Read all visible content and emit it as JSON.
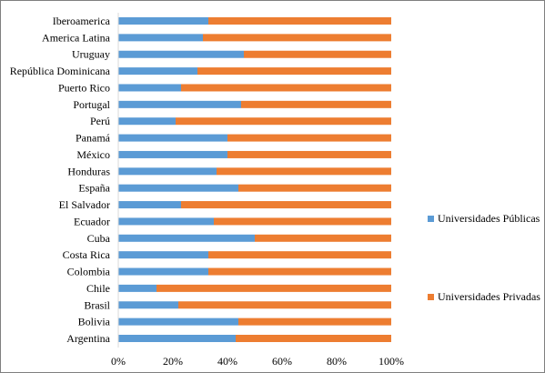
{
  "chart_data": {
    "type": "bar",
    "orientation": "horizontal",
    "stacked": "percent",
    "categories": [
      "Iberoamerica",
      "America Latina",
      "Uruguay",
      "República Dominicana",
      "Puerto Rico",
      "Portugal",
      "Perú",
      "Panamá",
      "México",
      "Honduras",
      "España",
      "El Salvador",
      "Ecuador",
      "Cuba",
      "Costa Rica",
      "Colombia",
      "Chile",
      "Brasil",
      "Bolivia",
      "Argentina"
    ],
    "series": [
      {
        "name": "Universidades Públicas",
        "color": "#5b9bd5",
        "values": [
          33,
          31,
          46,
          29,
          23,
          45,
          21,
          40,
          40,
          36,
          44,
          23,
          35,
          50,
          33,
          33,
          14,
          22,
          44,
          43
        ]
      },
      {
        "name": "Universidades Privadas",
        "color": "#ed7d31",
        "values": [
          67,
          69,
          54,
          71,
          77,
          55,
          79,
          60,
          60,
          64,
          56,
          77,
          65,
          50,
          67,
          67,
          86,
          78,
          56,
          57
        ]
      }
    ],
    "xlim": [
      0,
      100
    ],
    "xticks": [
      "0%",
      "20%",
      "40%",
      "60%",
      "80%",
      "100%"
    ],
    "grid": false,
    "legend_position": "right"
  }
}
